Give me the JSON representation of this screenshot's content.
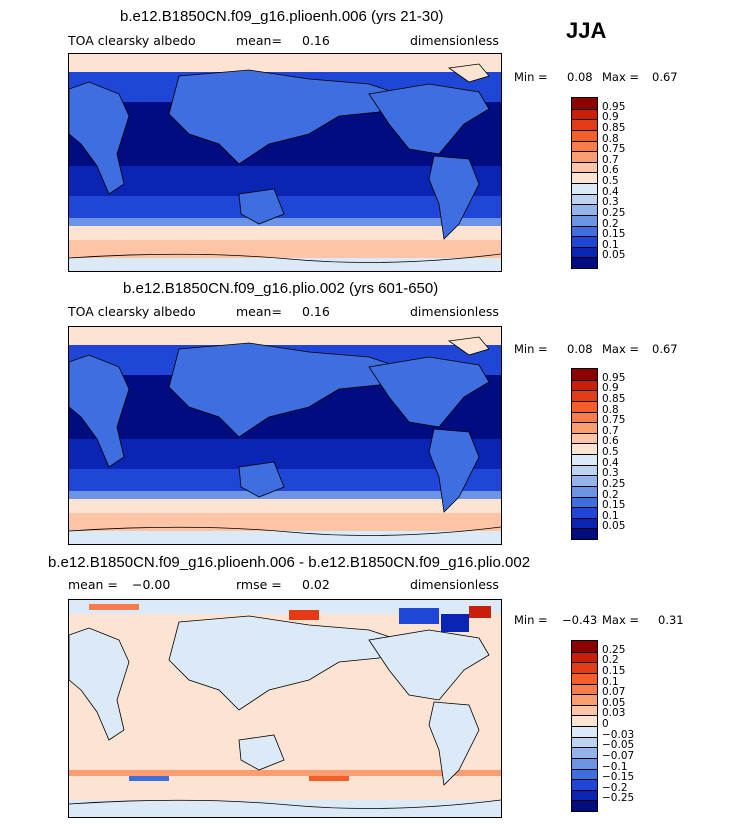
{
  "season": "JJA",
  "chart_data": [
    {
      "type": "heatmap",
      "title": "b.e12.B1850CN.f09_g16.plioenh.006 (yrs 21-30)",
      "variable": "TOA clearsky albedo",
      "stat_label": "mean=",
      "stat_value": "0.16",
      "units": "dimensionless",
      "min_label": "Min =",
      "min_value": "0.08",
      "max_label": "Max =",
      "max_value": "0.67",
      "colorbar": {
        "levels": [
          "0.95",
          "0.9",
          "0.85",
          "0.8",
          "0.75",
          "0.7",
          "0.6",
          "0.5",
          "0.4",
          "0.3",
          "0.25",
          "0.2",
          "0.15",
          "0.1",
          "0.05"
        ],
        "colors": [
          "#8b0000",
          "#c81e0a",
          "#e33b16",
          "#f55d2a",
          "#f97d4c",
          "#fa9e72",
          "#fdc5a5",
          "#fde4d2",
          "#dce9f7",
          "#bcd3f2",
          "#93b5ec",
          "#6b94e6",
          "#3f6ee0",
          "#1f46d6",
          "#0a24b4",
          "#000c80"
        ]
      }
    },
    {
      "type": "heatmap",
      "title": "b.e12.B1850CN.f09_g16.plio.002 (yrs 601-650)",
      "variable": "TOA clearsky albedo",
      "stat_label": "mean=",
      "stat_value": "0.16",
      "units": "dimensionless",
      "min_label": "Min =",
      "min_value": "0.08",
      "max_label": "Max =",
      "max_value": "0.67",
      "colorbar": {
        "levels": [
          "0.95",
          "0.9",
          "0.85",
          "0.8",
          "0.75",
          "0.7",
          "0.6",
          "0.5",
          "0.4",
          "0.3",
          "0.25",
          "0.2",
          "0.15",
          "0.1",
          "0.05"
        ],
        "colors": [
          "#8b0000",
          "#c81e0a",
          "#e33b16",
          "#f55d2a",
          "#f97d4c",
          "#fa9e72",
          "#fdc5a5",
          "#fde4d2",
          "#dce9f7",
          "#bcd3f2",
          "#93b5ec",
          "#6b94e6",
          "#3f6ee0",
          "#1f46d6",
          "#0a24b4",
          "#000c80"
        ]
      }
    },
    {
      "type": "heatmap",
      "title": "b.e12.B1850CN.f09_g16.plioenh.006 - b.e12.B1850CN.f09_g16.plio.002",
      "mean_label": "mean =",
      "mean_value": "−0.00",
      "rmse_label": "rmse =",
      "rmse_value": "0.02",
      "units": "dimensionless",
      "min_label": "Min =",
      "min_value": "−0.43",
      "max_label": "Max =",
      "max_value": "0.31",
      "colorbar": {
        "levels": [
          "0.25",
          "0.2",
          "0.15",
          "0.1",
          "0.07",
          "0.05",
          "0.03",
          "0",
          "−0.03",
          "−0.05",
          "−0.07",
          "−0.1",
          "−0.15",
          "−0.2",
          "−0.25"
        ],
        "colors": [
          "#8b0000",
          "#c81e0a",
          "#e33b16",
          "#f55d2a",
          "#f97d4c",
          "#fa9e72",
          "#fdc5a5",
          "#fde4d2",
          "#dce9f7",
          "#bcd3f2",
          "#93b5ec",
          "#6b94e6",
          "#3f6ee0",
          "#1f46d6",
          "#0a24b4",
          "#000c80"
        ]
      }
    }
  ]
}
